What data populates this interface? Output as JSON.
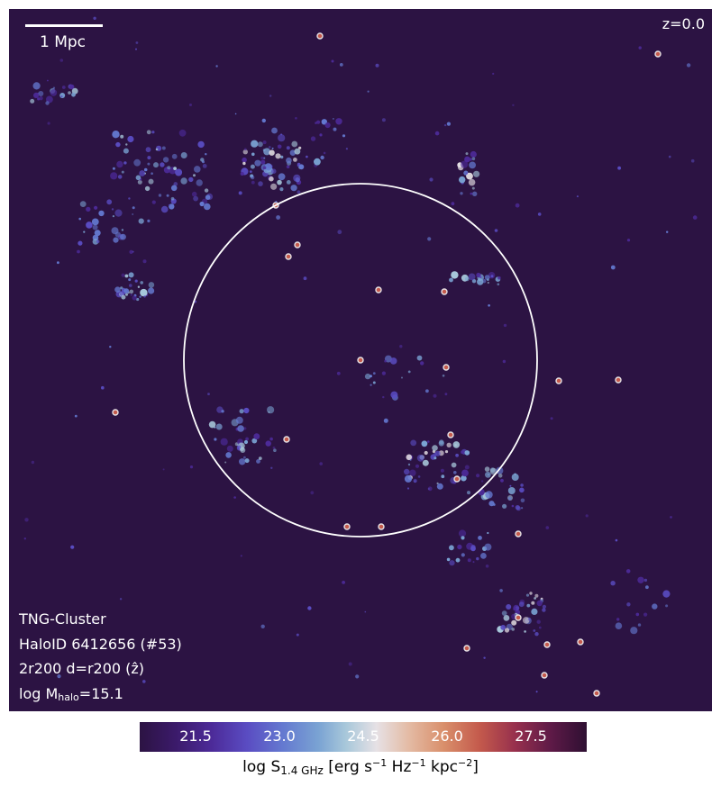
{
  "scale_bar": {
    "label": "1 Mpc"
  },
  "redshift": "z=0.0",
  "info": {
    "simulation": "TNG-Cluster",
    "halo_id": "HaloID 6412656 (#53)",
    "projection": "2r200 d=r200 (ẑ)",
    "mass_prefix": "log M",
    "mass_subscript": "halo",
    "mass_suffix": "=15.1"
  },
  "colorbar": {
    "ticks": [
      "21.5",
      "23.0",
      "24.5",
      "26.0",
      "27.5"
    ],
    "label_prefix": "log S",
    "label_subscript": "1.4 GHz",
    "label_units_part1": " [erg s",
    "label_exp1": "−1",
    "label_units_part2": " Hz",
    "label_exp2": "−1",
    "label_units_part3": " kpc",
    "label_exp3": "−2",
    "label_units_part4": "]",
    "colormap": "purple-blue-white-orange-dark-red"
  },
  "colors": {
    "background": "#2c1343",
    "circle": "#ffffff",
    "emission_low": "#5a4cc2",
    "emission_mid": "#7aa3d3",
    "emission_high": "#e6e1e5",
    "emission_peak": "#c45a4c"
  }
}
